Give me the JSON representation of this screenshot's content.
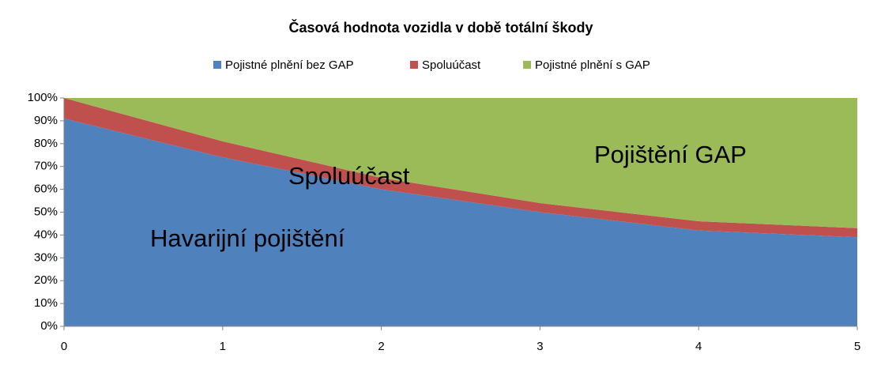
{
  "chart_data": {
    "type": "stacked_area",
    "title": "Časová hodnota vozidla v době totální škody",
    "x": [
      0,
      1,
      2,
      3,
      4,
      5
    ],
    "xlim": [
      0,
      5
    ],
    "xticks": [
      0,
      1,
      2,
      3,
      4,
      5
    ],
    "ylim": [
      0,
      100
    ],
    "yticks": [
      {
        "value": 0,
        "label": "0%"
      },
      {
        "value": 10,
        "label": "10%"
      },
      {
        "value": 20,
        "label": "20%"
      },
      {
        "value": 30,
        "label": "30%"
      },
      {
        "value": 40,
        "label": "40%"
      },
      {
        "value": 50,
        "label": "50%"
      },
      {
        "value": 60,
        "label": "60%"
      },
      {
        "value": 70,
        "label": "70%"
      },
      {
        "value": 80,
        "label": "80%"
      },
      {
        "value": 90,
        "label": "90%"
      },
      {
        "value": 100,
        "label": "100%"
      }
    ],
    "legend": "top",
    "series": [
      {
        "name": "Pojistné plnění bez GAP",
        "color": "#4f81bd",
        "values": [
          91,
          74,
          60,
          50,
          42,
          39
        ]
      },
      {
        "name": "Spoluúčast",
        "color": "#c0504d",
        "values": [
          9,
          7,
          5,
          4,
          4,
          4
        ]
      },
      {
        "name": "Pojistné plnění s GAP",
        "color": "#9bbb59",
        "values": [
          0,
          19,
          35,
          46,
          54,
          57
        ]
      }
    ],
    "annotations": [
      "Havarijní pojištění",
      "Spoluúčast",
      "Pojištění GAP"
    ]
  }
}
